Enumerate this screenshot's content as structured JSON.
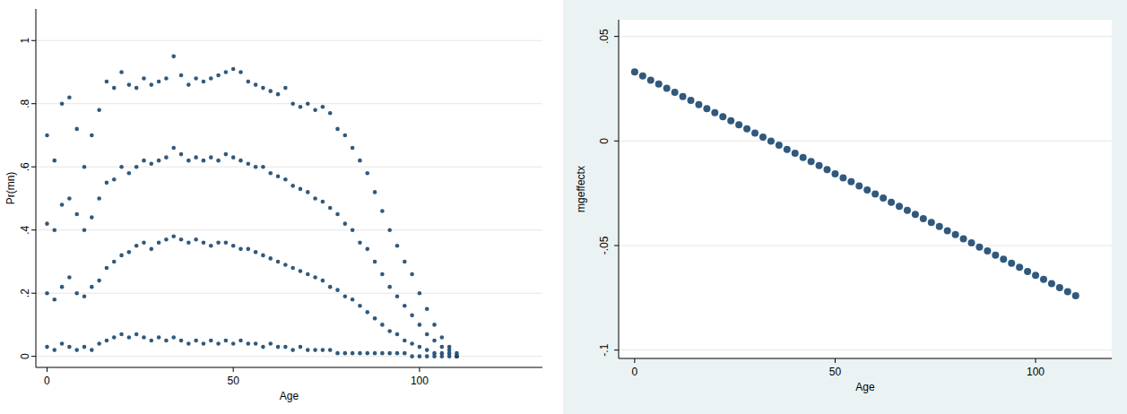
{
  "chart_data": [
    {
      "type": "scatter",
      "x_label": "Age",
      "y_label": "Pr(mn)",
      "color": "#1a476f",
      "marker": "circle",
      "grid": true,
      "xlim": [
        -3,
        133
      ],
      "ylim": [
        -0.035,
        1.1
      ],
      "xticks": [
        0,
        50,
        100
      ],
      "yticks": [
        0,
        {
          "value": 0.2,
          "label": ".2"
        },
        {
          "value": 0.4,
          "label": ".4"
        },
        {
          "value": 0.6,
          "label": ".6"
        },
        {
          "value": 0.8,
          "label": ".8"
        },
        1
      ],
      "x": [
        0,
        0,
        0,
        0,
        2,
        2,
        2,
        2,
        4,
        4,
        4,
        4,
        6,
        6,
        6,
        6,
        8,
        8,
        8,
        8,
        10,
        10,
        10,
        10,
        12,
        12,
        12,
        12,
        14,
        14,
        14,
        14,
        16,
        16,
        16,
        16,
        18,
        18,
        18,
        18,
        20,
        20,
        20,
        20,
        22,
        22,
        22,
        22,
        24,
        24,
        24,
        24,
        26,
        26,
        26,
        26,
        28,
        28,
        28,
        28,
        30,
        30,
        30,
        30,
        32,
        32,
        32,
        32,
        34,
        34,
        34,
        34,
        36,
        36,
        36,
        36,
        38,
        38,
        38,
        38,
        40,
        40,
        40,
        40,
        42,
        42,
        42,
        42,
        44,
        44,
        44,
        44,
        46,
        46,
        46,
        46,
        48,
        48,
        48,
        48,
        50,
        50,
        50,
        50,
        52,
        52,
        52,
        52,
        54,
        54,
        54,
        54,
        56,
        56,
        56,
        56,
        58,
        58,
        58,
        58,
        60,
        60,
        60,
        60,
        62,
        62,
        62,
        62,
        64,
        64,
        64,
        64,
        66,
        66,
        66,
        66,
        68,
        68,
        68,
        68,
        70,
        70,
        70,
        70,
        72,
        72,
        72,
        72,
        74,
        74,
        74,
        74,
        76,
        76,
        76,
        76,
        78,
        78,
        78,
        78,
        80,
        80,
        80,
        80,
        82,
        82,
        82,
        82,
        84,
        84,
        84,
        84,
        86,
        86,
        86,
        86,
        88,
        88,
        88,
        88,
        90,
        90,
        90,
        90,
        92,
        92,
        92,
        92,
        94,
        94,
        94,
        94,
        96,
        96,
        96,
        96,
        98,
        98,
        98,
        98,
        100,
        100,
        100,
        100,
        102,
        102,
        102,
        102,
        104,
        104,
        104,
        104,
        106,
        106,
        106,
        106,
        108,
        108,
        108,
        108,
        110,
        110,
        110,
        110
      ],
      "values": [
        0.7,
        0.42,
        0.2,
        0.03,
        0.62,
        0.4,
        0.18,
        0.02,
        0.8,
        0.48,
        0.22,
        0.04,
        0.82,
        0.5,
        0.25,
        0.03,
        0.72,
        0.45,
        0.2,
        0.02,
        0.6,
        0.4,
        0.19,
        0.03,
        0.7,
        0.44,
        0.22,
        0.02,
        0.78,
        0.5,
        0.24,
        0.04,
        0.87,
        0.55,
        0.28,
        0.05,
        0.85,
        0.56,
        0.3,
        0.06,
        0.9,
        0.6,
        0.32,
        0.07,
        0.86,
        0.58,
        0.33,
        0.06,
        0.85,
        0.6,
        0.35,
        0.07,
        0.88,
        0.62,
        0.36,
        0.06,
        0.86,
        0.61,
        0.34,
        0.05,
        0.87,
        0.62,
        0.36,
        0.06,
        0.88,
        0.63,
        0.37,
        0.05,
        0.95,
        0.66,
        0.38,
        0.06,
        0.89,
        0.64,
        0.37,
        0.05,
        0.86,
        0.62,
        0.36,
        0.04,
        0.88,
        0.63,
        0.37,
        0.05,
        0.87,
        0.62,
        0.36,
        0.04,
        0.88,
        0.63,
        0.35,
        0.05,
        0.89,
        0.62,
        0.36,
        0.04,
        0.9,
        0.64,
        0.36,
        0.05,
        0.91,
        0.63,
        0.35,
        0.04,
        0.9,
        0.62,
        0.34,
        0.05,
        0.87,
        0.61,
        0.34,
        0.04,
        0.86,
        0.6,
        0.33,
        0.04,
        0.85,
        0.6,
        0.32,
        0.03,
        0.84,
        0.58,
        0.31,
        0.04,
        0.83,
        0.57,
        0.3,
        0.03,
        0.85,
        0.56,
        0.29,
        0.03,
        0.8,
        0.54,
        0.28,
        0.02,
        0.79,
        0.53,
        0.27,
        0.03,
        0.8,
        0.52,
        0.26,
        0.02,
        0.78,
        0.5,
        0.25,
        0.02,
        0.79,
        0.49,
        0.24,
        0.02,
        0.77,
        0.47,
        0.22,
        0.02,
        0.72,
        0.45,
        0.21,
        0.01,
        0.7,
        0.42,
        0.19,
        0.01,
        0.66,
        0.4,
        0.18,
        0.01,
        0.62,
        0.36,
        0.16,
        0.01,
        0.58,
        0.34,
        0.14,
        0.01,
        0.52,
        0.3,
        0.12,
        0.01,
        0.46,
        0.26,
        0.1,
        0.01,
        0.4,
        0.22,
        0.08,
        0.01,
        0.35,
        0.19,
        0.07,
        0.01,
        0.3,
        0.16,
        0.05,
        0.01,
        0.26,
        0.13,
        0.04,
        0,
        0.2,
        0.1,
        0.03,
        0,
        0.15,
        0.07,
        0.02,
        0,
        0.1,
        0.05,
        0.01,
        0,
        0.06,
        0.03,
        0.01,
        0,
        0.03,
        0.02,
        0.01,
        0,
        0.01,
        0,
        0,
        0
      ]
    },
    {
      "type": "scatter",
      "x_label": "Age",
      "y_label": "mgeffectx",
      "color": "#1a476f",
      "marker": "circle",
      "grid": true,
      "xlim": [
        -4,
        119
      ],
      "ylim": [
        -0.104,
        0.058
      ],
      "xticks": [
        0,
        50,
        100
      ],
      "yticks": [
        {
          "value": -0.1,
          "label": "-.1"
        },
        {
          "value": -0.05,
          "label": "-.05"
        },
        0,
        {
          "value": 0.05,
          "label": ".05"
        }
      ],
      "x": [
        0,
        2,
        4,
        6,
        8,
        10,
        12,
        14,
        16,
        18,
        20,
        22,
        24,
        26,
        28,
        30,
        32,
        34,
        36,
        38,
        40,
        42,
        44,
        46,
        48,
        50,
        52,
        54,
        56,
        58,
        60,
        62,
        64,
        66,
        68,
        70,
        72,
        74,
        76,
        78,
        80,
        82,
        84,
        86,
        88,
        90,
        92,
        94,
        96,
        98,
        100,
        102,
        104,
        106,
        108,
        110
      ],
      "values": [
        0.033,
        0.0311,
        0.0291,
        0.0272,
        0.0252,
        0.0233,
        0.0213,
        0.0194,
        0.0174,
        0.0155,
        0.0135,
        0.0116,
        0.0097,
        0.0077,
        0.0058,
        0.0038,
        0.0019,
        -0.0001,
        -0.002,
        -0.004,
        -0.0059,
        -0.0079,
        -0.0098,
        -0.0118,
        -0.0137,
        -0.0157,
        -0.0176,
        -0.0195,
        -0.0215,
        -0.0234,
        -0.0254,
        -0.0273,
        -0.0293,
        -0.0312,
        -0.0332,
        -0.0351,
        -0.0371,
        -0.039,
        -0.0409,
        -0.0429,
        -0.0448,
        -0.0468,
        -0.0487,
        -0.0507,
        -0.0526,
        -0.0546,
        -0.0565,
        -0.0585,
        -0.0604,
        -0.0624,
        -0.0643,
        -0.0662,
        -0.0682,
        -0.0701,
        -0.0721,
        -0.074
      ]
    }
  ]
}
